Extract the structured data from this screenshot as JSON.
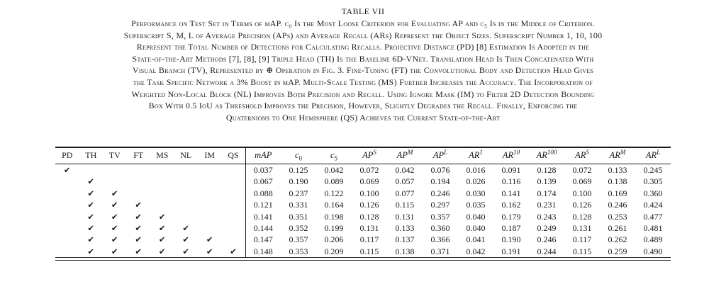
{
  "caption": {
    "label": "TABLE VII",
    "lines": [
      "Performance on Test Set in Terms of mAP. c₀ Is the Most Loose Criterion for Evaluating AP and c₅ Is in the Middle of Criterion.",
      "Superscript S, M, L of Average Precision (APs) and Average Recall (ARs) Represent the Object Sizes. Superscript Number 1, 10, 100",
      "Represent the Total Number of Detections for Calculating Recalls. Projective Distance (PD) [8] Estimation Is Adopted in the",
      "State-of-the-Art Methods [7], [8], [9] Triple Head (TH) Is the Baseline 6D-VNet. Translation Head Is Then Concatenated With",
      "Visual Branch (TV), Represented by ⊕ Operation in Fig. 3. Fine-Tuning (FT) the Convolutional Body and Detection Head Gives",
      "the Task Specific Network a 3% Boost in mAP. Multi-Scale Testing (MS) Further Increases the Accuracy. The Incorporation of",
      "Weighted Non-Local Block (NL) Improves Both Precision and Recall. Using Ignore Mask (IM) to Filter 2D Detection Bounding",
      "Box With 0.5 IoU as Threshold Improves the Precision, However, Slightly Degrades the Recall. Finally, Enforcing the",
      "Quaternions to One Hemisphere (QS) Achieves the Current State-of-the-Art"
    ]
  },
  "table": {
    "method_columns": [
      "PD",
      "TH",
      "TV",
      "FT",
      "MS",
      "NL",
      "IM",
      "QS"
    ],
    "metric_columns": [
      "mAP",
      "c_0",
      "c_5",
      "AP^S",
      "AP^M",
      "AP^L",
      "AR^1",
      "AR^10",
      "AR^100",
      "AR^S",
      "AR^M",
      "AR^L"
    ],
    "checkmark_glyph": "✔",
    "rows": [
      {
        "checks": [
          "PD"
        ],
        "values": [
          "0.037",
          "0.125",
          "0.042",
          "0.072",
          "0.042",
          "0.076",
          "0.016",
          "0.091",
          "0.128",
          "0.072",
          "0.133",
          "0.245"
        ]
      },
      {
        "checks": [
          "TH"
        ],
        "values": [
          "0.067",
          "0.190",
          "0.089",
          "0.069",
          "0.057",
          "0.194",
          "0.026",
          "0.116",
          "0.139",
          "0.069",
          "0.138",
          "0.305"
        ]
      },
      {
        "checks": [
          "TH",
          "TV"
        ],
        "values": [
          "0.088",
          "0.237",
          "0.122",
          "0.100",
          "0.077",
          "0.246",
          "0.030",
          "0.141",
          "0.174",
          "0.100",
          "0.169",
          "0.360"
        ]
      },
      {
        "checks": [
          "TH",
          "TV",
          "FT"
        ],
        "values": [
          "0.121",
          "0.331",
          "0.164",
          "0.126",
          "0.115",
          "0.297",
          "0.035",
          "0.162",
          "0.231",
          "0.126",
          "0.246",
          "0.424"
        ]
      },
      {
        "checks": [
          "TH",
          "TV",
          "FT",
          "MS"
        ],
        "values": [
          "0.141",
          "0.351",
          "0.198",
          "0.128",
          "0.131",
          "0.357",
          "0.040",
          "0.179",
          "0.243",
          "0.128",
          "0.253",
          "0.477"
        ]
      },
      {
        "checks": [
          "TH",
          "TV",
          "FT",
          "MS",
          "NL"
        ],
        "values": [
          "0.144",
          "0.352",
          "0.199",
          "0.131",
          "0.133",
          "0.360",
          "0.040",
          "0.187",
          "0.249",
          "0.131",
          "0.261",
          "0.481"
        ]
      },
      {
        "checks": [
          "TH",
          "TV",
          "FT",
          "MS",
          "NL",
          "IM"
        ],
        "values": [
          "0.147",
          "0.357",
          "0.206",
          "0.117",
          "0.137",
          "0.366",
          "0.041",
          "0.190",
          "0.246",
          "0.117",
          "0.262",
          "0.489"
        ]
      },
      {
        "checks": [
          "TH",
          "TV",
          "FT",
          "MS",
          "NL",
          "IM",
          "QS"
        ],
        "values": [
          "0.148",
          "0.353",
          "0.209",
          "0.115",
          "0.138",
          "0.371",
          "0.042",
          "0.191",
          "0.244",
          "0.115",
          "0.259",
          "0.490"
        ]
      }
    ]
  }
}
